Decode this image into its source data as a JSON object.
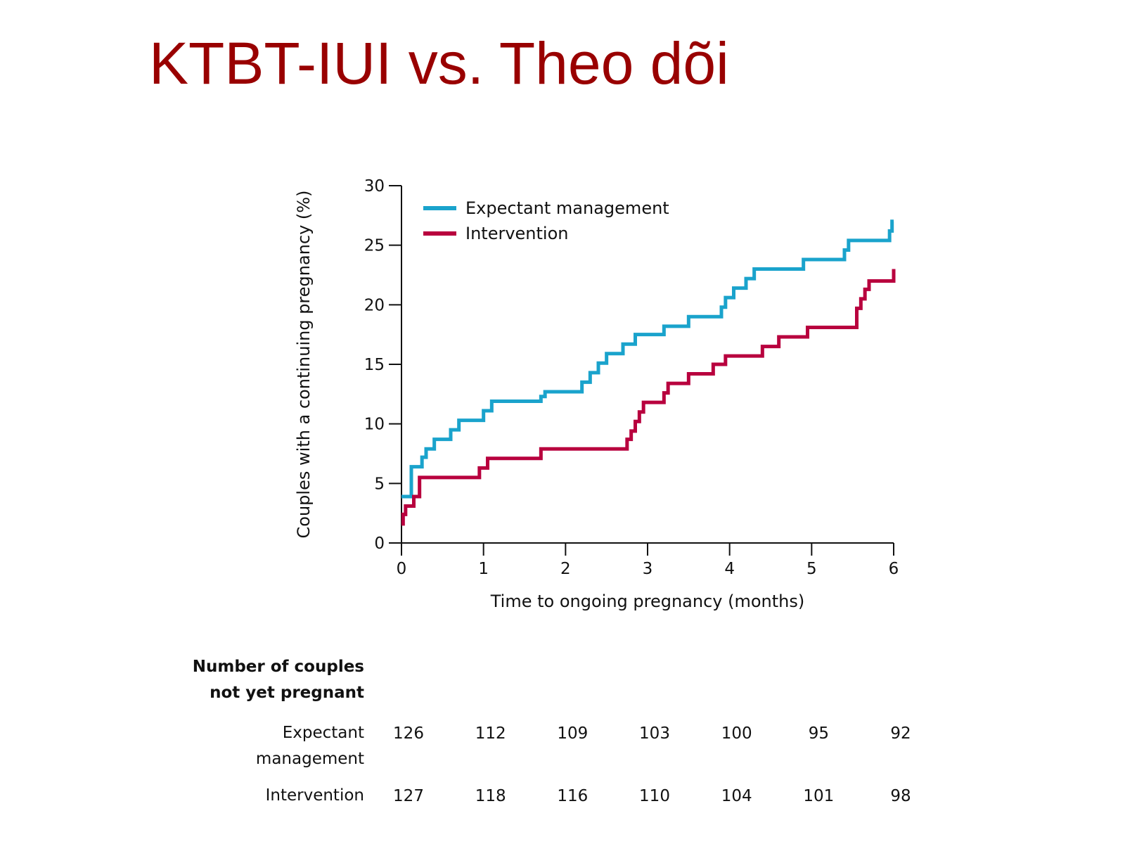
{
  "title": "KTBT-IUI vs. Theo dõi",
  "colors": {
    "title": "#990000",
    "expectant": "#1aa3cc",
    "intervention": "#b8003e"
  },
  "chart_data": {
    "type": "line",
    "step": true,
    "xlabel": "Time to ongoing pregnancy (months)",
    "ylabel": "Couples with a continuing pregnancy (%)",
    "xlim": [
      0,
      6
    ],
    "ylim": [
      0,
      30
    ],
    "xticks": [
      "0",
      "1",
      "2",
      "3",
      "4",
      "5",
      "6"
    ],
    "yticks": [
      "0",
      "5",
      "10",
      "15",
      "20",
      "25",
      "30"
    ],
    "grid": false,
    "legend_position": "top-left",
    "series": [
      {
        "name": "Expectant management",
        "color": "#1aa3cc",
        "x": [
          0,
          0.1,
          0.12,
          0.25,
          0.3,
          0.4,
          0.6,
          0.7,
          1.0,
          1.1,
          1.7,
          1.75,
          2.2,
          2.3,
          2.4,
          2.5,
          2.7,
          2.85,
          3.2,
          3.5,
          3.9,
          3.95,
          4.05,
          4.2,
          4.3,
          4.9,
          5.4,
          5.45,
          5.95,
          5.98,
          6.0
        ],
        "y": [
          3.9,
          3.9,
          6.4,
          7.2,
          7.9,
          8.7,
          9.5,
          10.3,
          11.1,
          11.9,
          12.3,
          12.7,
          13.5,
          14.3,
          15.1,
          15.9,
          16.7,
          17.5,
          18.2,
          19.0,
          19.8,
          20.6,
          21.4,
          22.2,
          23.0,
          23.8,
          24.6,
          25.4,
          26.2,
          27.0,
          27.0
        ]
      },
      {
        "name": "Intervention",
        "color": "#b8003e",
        "x": [
          0,
          0.02,
          0.05,
          0.15,
          0.22,
          0.95,
          1.05,
          1.7,
          2.75,
          2.8,
          2.85,
          2.9,
          2.95,
          3.2,
          3.25,
          3.5,
          3.8,
          3.95,
          4.4,
          4.6,
          4.95,
          5.55,
          5.6,
          5.65,
          5.7,
          6.0
        ],
        "y": [
          1.6,
          2.4,
          3.1,
          3.9,
          5.5,
          6.3,
          7.1,
          7.9,
          8.7,
          9.4,
          10.2,
          11.0,
          11.8,
          12.6,
          13.4,
          14.2,
          15.0,
          15.7,
          16.5,
          17.3,
          18.1,
          19.7,
          20.5,
          21.3,
          22.0,
          23.0
        ]
      }
    ]
  },
  "risk_table": {
    "heading": [
      "Number of couples",
      "not yet pregnant"
    ],
    "rows": [
      {
        "label_lines": [
          "Expectant",
          "management"
        ],
        "values": [
          "126",
          "112",
          "109",
          "103",
          "100",
          "95",
          "92"
        ]
      },
      {
        "label_lines": [
          "Intervention"
        ],
        "values": [
          "127",
          "118",
          "116",
          "110",
          "104",
          "101",
          "98"
        ]
      }
    ]
  }
}
